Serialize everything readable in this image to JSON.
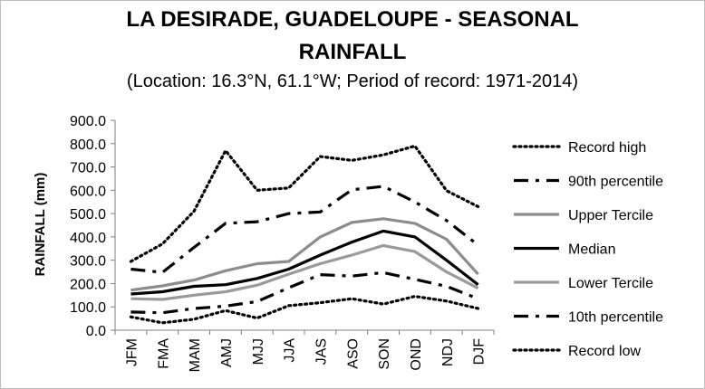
{
  "chart_data": {
    "type": "line",
    "title_line1": "LA DESIRADE, GUADELOUPE - SEASONAL",
    "title_line2": "RAINFALL",
    "subtitle": "(Location: 16.3°N, 61.1°W; Period of record: 1971-2014)",
    "xlabel": "",
    "ylabel": "RAINFALL (mm)",
    "ylim": [
      0,
      900
    ],
    "yticks": [
      "0.0",
      "100.0",
      "200.0",
      "300.0",
      "400.0",
      "500.0",
      "600.0",
      "700.0",
      "800.0",
      "900.0"
    ],
    "categories": [
      "JFM",
      "FMA",
      "MAM",
      "AMJ",
      "MJJ",
      "JJA",
      "JAS",
      "ASO",
      "SON",
      "OND",
      "NDJ",
      "DJF"
    ],
    "legend_position": "right",
    "grid": false,
    "series": [
      {
        "name": "Record high",
        "style": "dotted",
        "color": "#000000",
        "values": [
          295,
          370,
          510,
          770,
          600,
          610,
          745,
          728,
          752,
          790,
          598,
          530
        ]
      },
      {
        "name": "90th percentile",
        "style": "dashdot",
        "color": "#000000",
        "values": [
          262,
          248,
          355,
          458,
          465,
          500,
          507,
          602,
          617,
          550,
          470,
          365
        ]
      },
      {
        "name": "Upper Tercile",
        "style": "solid",
        "color": "#8c8c8c",
        "values": [
          172,
          190,
          215,
          255,
          285,
          295,
          400,
          462,
          478,
          458,
          390,
          240
        ]
      },
      {
        "name": "Median",
        "style": "solid",
        "color": "#000000",
        "values": [
          155,
          165,
          188,
          195,
          222,
          262,
          322,
          378,
          425,
          400,
          300,
          195
        ]
      },
      {
        "name": "Lower Tercile",
        "style": "solid",
        "color": "#9a9a9a",
        "values": [
          135,
          132,
          150,
          165,
          193,
          240,
          285,
          322,
          363,
          337,
          250,
          180
        ]
      },
      {
        "name": "10th percentile",
        "style": "dashdot",
        "color": "#000000",
        "values": [
          78,
          75,
          93,
          103,
          123,
          182,
          238,
          232,
          247,
          218,
          188,
          135
        ]
      },
      {
        "name": "Record low",
        "style": "dotted",
        "color": "#000000",
        "values": [
          57,
          32,
          47,
          84,
          52,
          105,
          118,
          135,
          112,
          145,
          125,
          93
        ]
      }
    ]
  }
}
